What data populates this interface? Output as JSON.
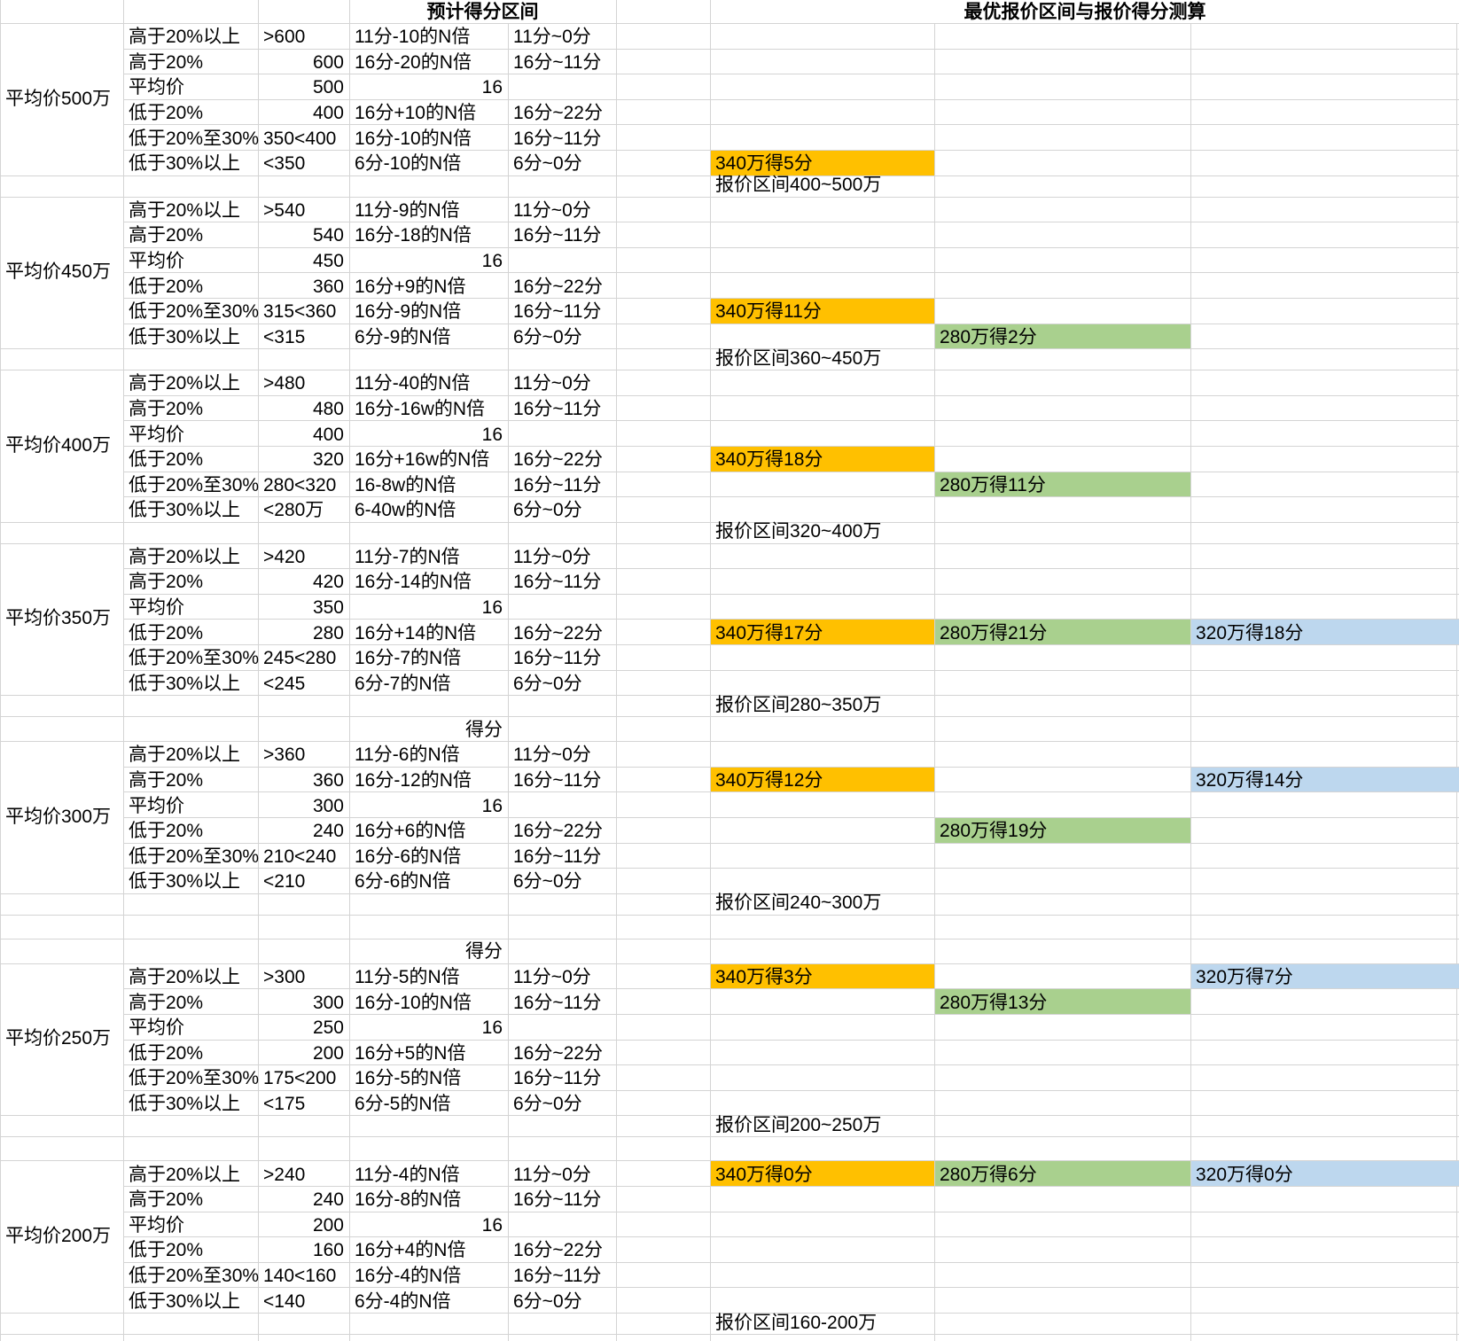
{
  "titles": {
    "estimated_score_range": "预计得分区间",
    "optimal_quote": "最优报价区间与报价得分测算"
  },
  "score_label": "得分",
  "colors": {
    "orange": "#FFC000",
    "green": "#A9D08E",
    "blue": "#BDD7EE",
    "gridline": "#D4D4D4",
    "text": "#000000"
  },
  "blocks": [
    {
      "avg_label": "平均价500万",
      "tiers": [
        {
          "tier": "高于20%以上",
          "value": ">600",
          "formula": "11分-10的N倍",
          "range": "11分~0分"
        },
        {
          "tier": "高于20%",
          "value": "600",
          "formula": "16分-20的N倍",
          "range": "16分~11分"
        },
        {
          "tier": "平均价",
          "value": "500",
          "formula": "16",
          "range": ""
        },
        {
          "tier": "低于20%",
          "value": "400",
          "formula": "16分+10的N倍",
          "range": "16分~22分"
        },
        {
          "tier": "低于20%至30%",
          "value": "350<400",
          "formula": "16分-10的N倍",
          "range": "16分~11分"
        },
        {
          "tier": "低于30%以上",
          "value": "<350",
          "formula": "6分-10的N倍",
          "range": "6分~0分"
        }
      ],
      "quote_range": "报价区间400~500万",
      "highlights": [
        {
          "tier_index": 5,
          "col": "G",
          "color": "orange",
          "text": "340万得5分"
        }
      ],
      "after": [
        "quote"
      ]
    },
    {
      "avg_label": "平均价450万",
      "tiers": [
        {
          "tier": "高于20%以上",
          "value": ">540",
          "formula": "11分-9的N倍",
          "range": "11分~0分"
        },
        {
          "tier": "高于20%",
          "value": "540",
          "formula": "16分-18的N倍",
          "range": "16分~11分"
        },
        {
          "tier": "平均价",
          "value": "450",
          "formula": "16",
          "range": ""
        },
        {
          "tier": "低于20%",
          "value": "360",
          "formula": "16分+9的N倍",
          "range": "16分~22分"
        },
        {
          "tier": "低于20%至30%",
          "value": "315<360",
          "formula": "16分-9的N倍",
          "range": "16分~11分"
        },
        {
          "tier": "低于30%以上",
          "value": "<315",
          "formula": "6分-9的N倍",
          "range": "6分~0分"
        }
      ],
      "quote_range": "报价区间360~450万",
      "highlights": [
        {
          "tier_index": 4,
          "col": "G",
          "color": "orange",
          "text": "340万得11分"
        },
        {
          "tier_index": 5,
          "col": "H",
          "color": "green",
          "text": "280万得2分"
        }
      ],
      "after": [
        "quote"
      ]
    },
    {
      "avg_label": "平均价400万",
      "tiers": [
        {
          "tier": "高于20%以上",
          "value": ">480",
          "formula": "11分-40的N倍",
          "range": "11分~0分"
        },
        {
          "tier": "高于20%",
          "value": "480",
          "formula": "16分-16w的N倍",
          "range": "16分~11分"
        },
        {
          "tier": "平均价",
          "value": "400",
          "formula": "16",
          "range": ""
        },
        {
          "tier": "低于20%",
          "value": "320",
          "formula": "16分+16w的N倍",
          "range": "16分~22分"
        },
        {
          "tier": "低于20%至30%",
          "value": "280<320",
          "formula": "16-8w的N倍",
          "range": "16分~11分"
        },
        {
          "tier": "低于30%以上",
          "value": "<280万",
          "formula": "6-40w的N倍",
          "range": "6分~0分"
        }
      ],
      "quote_range": "报价区间320~400万",
      "highlights": [
        {
          "tier_index": 3,
          "col": "G",
          "color": "orange",
          "text": "340万得18分"
        },
        {
          "tier_index": 4,
          "col": "H",
          "color": "green",
          "text": "280万得11分"
        }
      ],
      "after": [
        "quote"
      ]
    },
    {
      "avg_label": "平均价350万",
      "tiers": [
        {
          "tier": "高于20%以上",
          "value": ">420",
          "formula": "11分-7的N倍",
          "range": "11分~0分"
        },
        {
          "tier": "高于20%",
          "value": "420",
          "formula": "16分-14的N倍",
          "range": "16分~11分"
        },
        {
          "tier": "平均价",
          "value": "350",
          "formula": "16",
          "range": ""
        },
        {
          "tier": "低于20%",
          "value": "280",
          "formula": "16分+14的N倍",
          "range": "16分~22分"
        },
        {
          "tier": "低于20%至30%",
          "value": "245<280",
          "formula": "16分-7的N倍",
          "range": "16分~11分"
        },
        {
          "tier": "低于30%以上",
          "value": "<245",
          "formula": "6分-7的N倍",
          "range": "6分~0分"
        }
      ],
      "quote_range": "报价区间280~350万",
      "highlights": [
        {
          "tier_index": 3,
          "col": "G",
          "color": "orange",
          "text": "340万得17分"
        },
        {
          "tier_index": 3,
          "col": "H",
          "color": "green",
          "text": "280万得21分"
        },
        {
          "tier_index": 3,
          "col": "I",
          "color": "blue",
          "text": "320万得18分"
        }
      ],
      "after": [
        "quote",
        "score"
      ]
    },
    {
      "avg_label": "平均价300万",
      "tiers": [
        {
          "tier": "高于20%以上",
          "value": ">360",
          "formula": "11分-6的N倍",
          "range": "11分~0分"
        },
        {
          "tier": "高于20%",
          "value": "360",
          "formula": "16分-12的N倍",
          "range": "16分~11分"
        },
        {
          "tier": "平均价",
          "value": "300",
          "formula": "16",
          "range": ""
        },
        {
          "tier": "低于20%",
          "value": "240",
          "formula": "16分+6的N倍",
          "range": "16分~22分"
        },
        {
          "tier": "低于20%至30%",
          "value": "210<240",
          "formula": "16分-6的N倍",
          "range": "16分~11分"
        },
        {
          "tier": "低于30%以上",
          "value": "<210",
          "formula": "6分-6的N倍",
          "range": "6分~0分"
        }
      ],
      "quote_range": "报价区间240~300万",
      "highlights": [
        {
          "tier_index": 1,
          "col": "G",
          "color": "orange",
          "text": "340万得12分"
        },
        {
          "tier_index": 1,
          "col": "I",
          "color": "blue",
          "text": "320万得14分"
        },
        {
          "tier_index": 3,
          "col": "H",
          "color": "green",
          "text": "280万得19分"
        }
      ],
      "after": [
        "quote",
        "empty",
        "score"
      ]
    },
    {
      "avg_label": "平均价250万",
      "tiers": [
        {
          "tier": "高于20%以上",
          "value": ">300",
          "formula": "11分-5的N倍",
          "range": "11分~0分"
        },
        {
          "tier": "高于20%",
          "value": "300",
          "formula": "16分-10的N倍",
          "range": "16分~11分"
        },
        {
          "tier": "平均价",
          "value": "250",
          "formula": "16",
          "range": ""
        },
        {
          "tier": "低于20%",
          "value": "200",
          "formula": "16分+5的N倍",
          "range": "16分~22分"
        },
        {
          "tier": "低于20%至30%",
          "value": "175<200",
          "formula": "16分-5的N倍",
          "range": "16分~11分"
        },
        {
          "tier": "低于30%以上",
          "value": "<175",
          "formula": "6分-5的N倍",
          "range": "6分~0分"
        }
      ],
      "quote_range": "报价区间200~250万",
      "highlights": [
        {
          "tier_index": 0,
          "col": "G",
          "color": "orange",
          "text": "340万得3分"
        },
        {
          "tier_index": 0,
          "col": "I",
          "color": "blue",
          "text": "320万得7分"
        },
        {
          "tier_index": 1,
          "col": "H",
          "color": "green",
          "text": "280万得13分"
        }
      ],
      "after": [
        "quote",
        "empty"
      ]
    },
    {
      "avg_label": "平均价200万",
      "tiers": [
        {
          "tier": "高于20%以上",
          "value": ">240",
          "formula": "11分-4的N倍",
          "range": "11分~0分"
        },
        {
          "tier": "高于20%",
          "value": "240",
          "formula": "16分-8的N倍",
          "range": "16分~11分"
        },
        {
          "tier": "平均价",
          "value": "200",
          "formula": "16",
          "range": ""
        },
        {
          "tier": "低于20%",
          "value": "160",
          "formula": "16分+4的N倍",
          "range": "16分~22分"
        },
        {
          "tier": "低于20%至30%",
          "value": "140<160",
          "formula": "16分-4的N倍",
          "range": "16分~11分"
        },
        {
          "tier": "低于30%以上",
          "value": "<140",
          "formula": "6分-4的N倍",
          "range": "6分~0分"
        }
      ],
      "quote_range": "报价区间160-200万",
      "highlights": [
        {
          "tier_index": 0,
          "col": "G",
          "color": "orange",
          "text": "340万得0分"
        },
        {
          "tier_index": 0,
          "col": "H",
          "color": "green",
          "text": "280万得6分"
        },
        {
          "tier_index": 0,
          "col": "I",
          "color": "blue",
          "text": "320万得0分"
        }
      ],
      "after": [
        "quote",
        "tail"
      ]
    }
  ]
}
